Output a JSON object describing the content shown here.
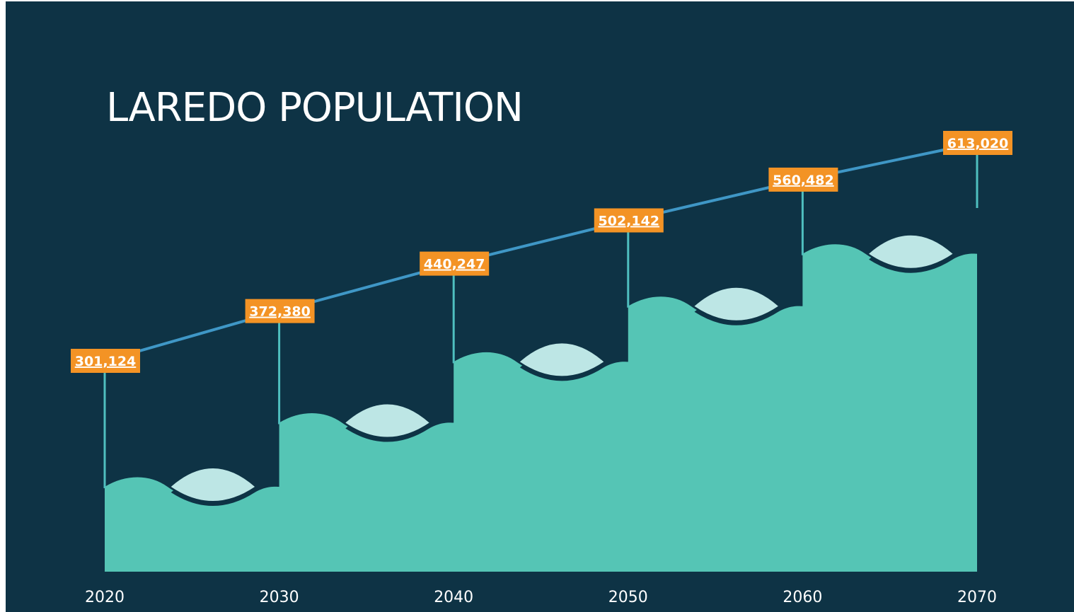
{
  "chart_data": {
    "type": "area",
    "title": "LAREDO POPULATION",
    "xlabel": "",
    "ylabel": "",
    "categories": [
      "2020",
      "2030",
      "2040",
      "2050",
      "2060",
      "2070"
    ],
    "values": [
      301124,
      372380,
      440247,
      502142,
      560482,
      613020
    ],
    "data_labels": [
      "301,124",
      "372,380",
      "440,247",
      "502,142",
      "560,482",
      "613,020"
    ],
    "grid": false,
    "legend": "none",
    "colors": {
      "background": "#0e3345",
      "area": "#55c5b5",
      "trend_line": "#3f97c6",
      "label_box": "#f39325",
      "wave_leaf": "#bde6e5"
    }
  }
}
